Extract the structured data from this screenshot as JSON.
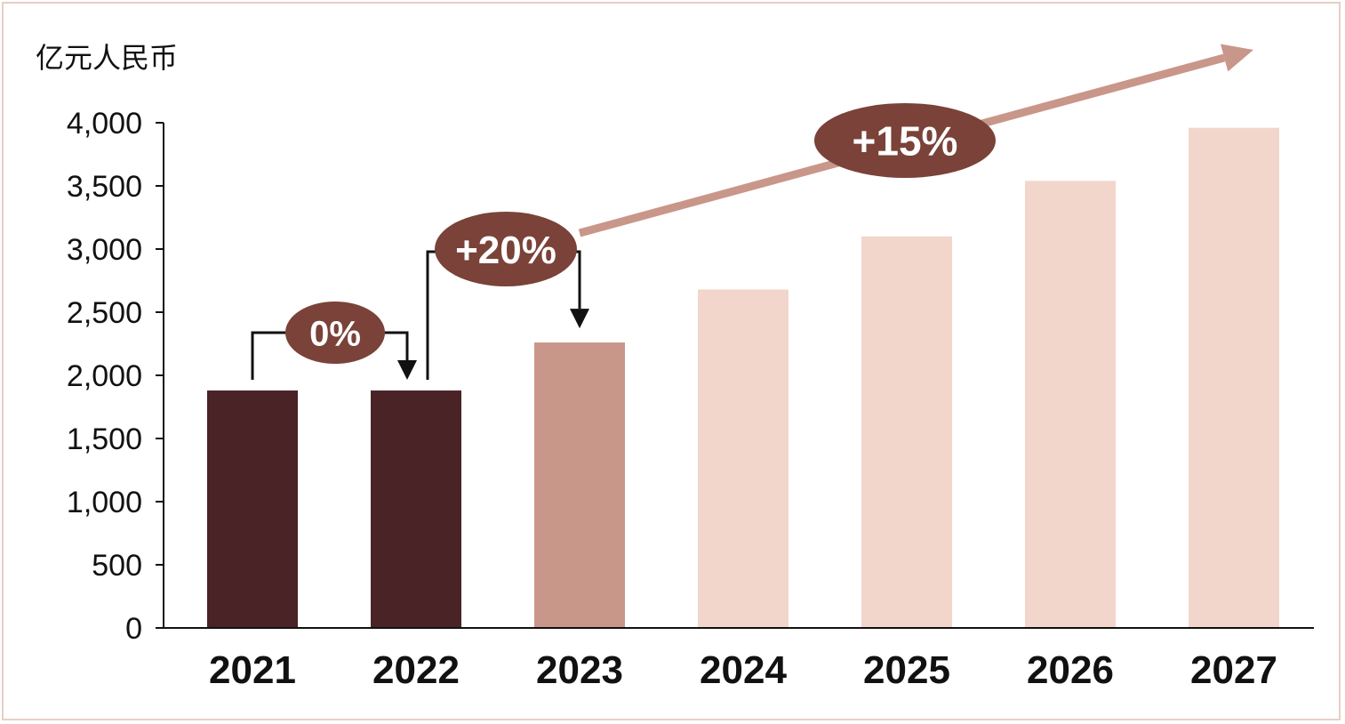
{
  "chart_data": {
    "type": "bar",
    "ylabel": "亿元人民币",
    "categories": [
      "2021",
      "2022",
      "2023",
      "2024",
      "2025",
      "2026",
      "2027"
    ],
    "values": [
      1880,
      1880,
      2260,
      2680,
      3100,
      3540,
      3960
    ],
    "ylim": [
      0,
      4000
    ],
    "yticks": [
      0,
      500,
      1000,
      1500,
      2000,
      2500,
      3000,
      3500,
      4000
    ],
    "ytick_labels": [
      "0",
      "500",
      "1,000",
      "1,500",
      "2,000",
      "2,500",
      "3,000",
      "3,500",
      "4,000"
    ],
    "bar_colors": [
      "#4a2326",
      "#4a2326",
      "#c9968a",
      "#f2d6cc",
      "#f2d6cc",
      "#f2d6cc",
      "#f2d6cc"
    ],
    "grid": false,
    "annotations": [
      {
        "label": "0%",
        "from": "2021",
        "to": "2022"
      },
      {
        "label": "+20%",
        "from": "2022",
        "to": "2023"
      },
      {
        "label": "+15%",
        "from": "2023",
        "to": "2027"
      }
    ],
    "colors": {
      "badge": "#7a4238",
      "trend_arrow": "#c9968a",
      "axis": "#111111"
    }
  }
}
